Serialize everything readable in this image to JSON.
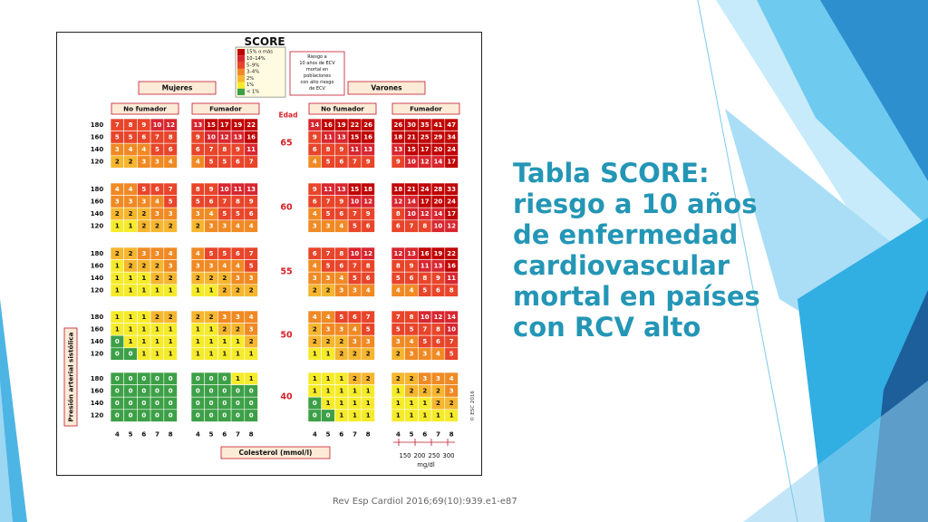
{
  "slide": {
    "title_lines": [
      "Tabla SCORE:",
      "riesgo a 10 años",
      "de enfermedad",
      "cardiovascular",
      "mortal en países",
      "con RCV alto"
    ],
    "citation": "Rev Esp Cardiol 2016;69(10):939.e1-e87"
  },
  "figure": {
    "logo": "SCORE",
    "legend": [
      {
        "label": "15% o más",
        "color": "#c00000"
      },
      {
        "label": "10–14%",
        "color": "#d8262f"
      },
      {
        "label": "5–9%",
        "color": "#e8452a"
      },
      {
        "label": "3–4%",
        "color": "#f08a24"
      },
      {
        "label": "2%",
        "color": "#f6b62e"
      },
      {
        "label": "1%",
        "color": "#f6eb2a"
      },
      {
        "label": "< 1%",
        "color": "#3da047"
      }
    ],
    "legend_note_lines": [
      "Riesgo a",
      "10 años de ECV",
      "mortal en",
      "poblaciones",
      "con alto riesgo",
      "de ECV"
    ],
    "groups": [
      "Mujeres",
      "Varones"
    ],
    "smoking": [
      "No fumador",
      "Fumador",
      "No fumador",
      "Fumador"
    ],
    "age_header": "Edad",
    "ages": [
      "65",
      "60",
      "55",
      "50",
      "40"
    ],
    "bp_label": "Presión arterial sistólica",
    "bp_values": [
      "180",
      "160",
      "140",
      "120"
    ],
    "chol_values": [
      "4",
      "5",
      "6",
      "7",
      "8"
    ],
    "chol_label": "Colesterol (mmol/l)",
    "mgdl_values": [
      "150",
      "200",
      "250",
      "300"
    ],
    "mgdl_unit": "mg/dl",
    "copyright": "© ESC 2016",
    "tables": [
      {
        "age": "65",
        "panels": [
          [
            [
              7,
              8,
              9,
              10,
              12
            ],
            [
              5,
              5,
              6,
              7,
              8
            ],
            [
              3,
              4,
              4,
              5,
              6
            ],
            [
              2,
              2,
              3,
              3,
              4
            ]
          ],
          [
            [
              13,
              15,
              17,
              19,
              22
            ],
            [
              9,
              10,
              12,
              13,
              16
            ],
            [
              6,
              7,
              8,
              9,
              11
            ],
            [
              4,
              5,
              5,
              6,
              7
            ]
          ],
          [
            [
              14,
              16,
              19,
              22,
              26
            ],
            [
              9,
              11,
              13,
              15,
              16
            ],
            [
              6,
              8,
              9,
              11,
              13
            ],
            [
              4,
              5,
              6,
              7,
              9
            ]
          ],
          [
            [
              26,
              30,
              35,
              41,
              47
            ],
            [
              18,
              21,
              25,
              29,
              34
            ],
            [
              13,
              15,
              17,
              20,
              24
            ],
            [
              9,
              10,
              12,
              14,
              17
            ]
          ]
        ]
      },
      {
        "age": "60",
        "panels": [
          [
            [
              4,
              4,
              5,
              6,
              7
            ],
            [
              3,
              3,
              3,
              4,
              5
            ],
            [
              2,
              2,
              2,
              3,
              3
            ],
            [
              1,
              1,
              2,
              2,
              2
            ]
          ],
          [
            [
              8,
              9,
              10,
              11,
              13
            ],
            [
              5,
              6,
              7,
              8,
              9
            ],
            [
              3,
              4,
              5,
              5,
              6
            ],
            [
              2,
              3,
              3,
              4,
              4
            ]
          ],
          [
            [
              9,
              11,
              13,
              15,
              18
            ],
            [
              6,
              7,
              9,
              10,
              12
            ],
            [
              4,
              5,
              6,
              7,
              9
            ],
            [
              3,
              3,
              4,
              5,
              6
            ]
          ],
          [
            [
              18,
              21,
              24,
              28,
              33
            ],
            [
              12,
              14,
              17,
              20,
              24
            ],
            [
              8,
              10,
              12,
              14,
              17
            ],
            [
              6,
              7,
              8,
              10,
              12
            ]
          ]
        ]
      },
      {
        "age": "55",
        "panels": [
          [
            [
              2,
              2,
              3,
              3,
              4
            ],
            [
              1,
              2,
              2,
              2,
              3
            ],
            [
              1,
              1,
              1,
              2,
              2
            ],
            [
              1,
              1,
              1,
              1,
              1
            ]
          ],
          [
            [
              4,
              5,
              5,
              6,
              7
            ],
            [
              3,
              3,
              4,
              4,
              5
            ],
            [
              2,
              2,
              2,
              3,
              3
            ],
            [
              1,
              1,
              2,
              2,
              2
            ]
          ],
          [
            [
              6,
              7,
              8,
              10,
              12
            ],
            [
              4,
              5,
              6,
              7,
              8
            ],
            [
              3,
              3,
              4,
              5,
              6
            ],
            [
              2,
              2,
              3,
              3,
              4
            ]
          ],
          [
            [
              12,
              13,
              16,
              19,
              22
            ],
            [
              8,
              9,
              11,
              13,
              16
            ],
            [
              5,
              6,
              8,
              9,
              11
            ],
            [
              4,
              4,
              5,
              6,
              8
            ]
          ]
        ]
      },
      {
        "age": "50",
        "panels": [
          [
            [
              1,
              1,
              1,
              2,
              2
            ],
            [
              1,
              1,
              1,
              1,
              1
            ],
            [
              0,
              1,
              1,
              1,
              1
            ],
            [
              0,
              0,
              1,
              1,
              1
            ]
          ],
          [
            [
              2,
              2,
              3,
              3,
              4
            ],
            [
              1,
              1,
              2,
              2,
              3
            ],
            [
              1,
              1,
              1,
              1,
              2
            ],
            [
              1,
              1,
              1,
              1,
              1
            ]
          ],
          [
            [
              4,
              4,
              5,
              6,
              7
            ],
            [
              2,
              3,
              3,
              4,
              5
            ],
            [
              2,
              2,
              2,
              3,
              3
            ],
            [
              1,
              1,
              2,
              2,
              2
            ]
          ],
          [
            [
              7,
              8,
              10,
              12,
              14
            ],
            [
              5,
              5,
              7,
              8,
              10
            ],
            [
              3,
              4,
              5,
              6,
              7
            ],
            [
              2,
              3,
              3,
              4,
              5
            ]
          ]
        ]
      },
      {
        "age": "40",
        "panels": [
          [
            [
              0,
              0,
              0,
              0,
              0
            ],
            [
              0,
              0,
              0,
              0,
              0
            ],
            [
              0,
              0,
              0,
              0,
              0
            ],
            [
              0,
              0,
              0,
              0,
              0
            ]
          ],
          [
            [
              0,
              0,
              0,
              1,
              1
            ],
            [
              0,
              0,
              0,
              0,
              0
            ],
            [
              0,
              0,
              0,
              0,
              0
            ],
            [
              0,
              0,
              0,
              0,
              0
            ]
          ],
          [
            [
              1,
              1,
              1,
              2,
              2
            ],
            [
              1,
              1,
              1,
              1,
              1
            ],
            [
              0,
              1,
              1,
              1,
              1
            ],
            [
              0,
              0,
              1,
              1,
              1
            ]
          ],
          [
            [
              2,
              2,
              3,
              3,
              4
            ],
            [
              1,
              2,
              2,
              2,
              3
            ],
            [
              1,
              1,
              1,
              2,
              2
            ],
            [
              1,
              1,
              1,
              1,
              1
            ]
          ]
        ]
      }
    ]
  },
  "colors": {
    "accent_title": "#2496b5",
    "header_border": "#c0172c",
    "header_fill": "#fcebd7",
    "age_text": "#d81e27",
    "deco_dark": "#1f6ea8",
    "deco_mid": "#2ea6de",
    "deco_light": "#86d3f1"
  }
}
